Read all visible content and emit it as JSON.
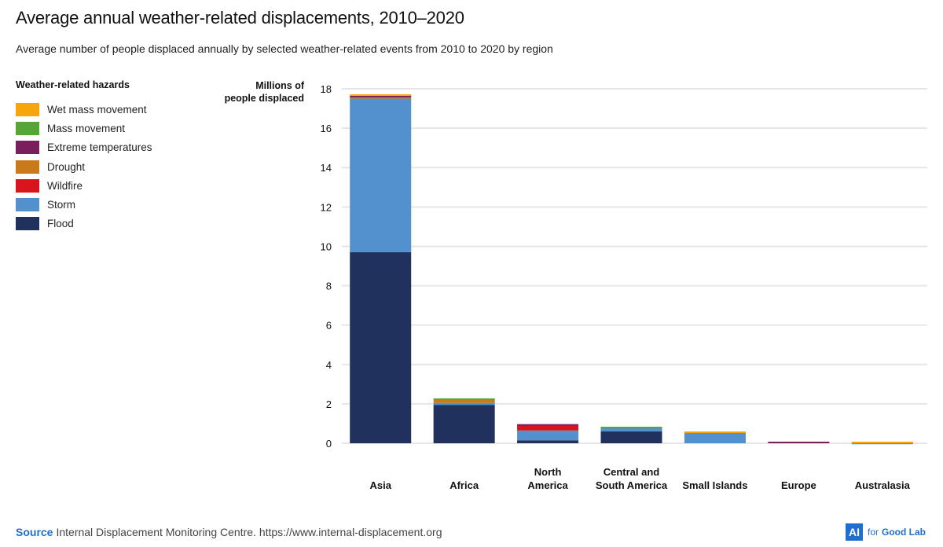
{
  "header": {
    "title": "Average annual weather-related displacements, 2010–2020",
    "subtitle": "Average number of people displaced annually by selected weather-related events from 2010 to 2020 by region"
  },
  "legend": {
    "title": "Weather-related hazards",
    "items": [
      {
        "label": "Wet mass movement",
        "color": "#F7A50D"
      },
      {
        "label": "Mass movement",
        "color": "#55A634"
      },
      {
        "label": "Extreme temperatures",
        "color": "#7A1F5E"
      },
      {
        "label": "Drought",
        "color": "#C97A1A"
      },
      {
        "label": "Wildfire",
        "color": "#D8141D"
      },
      {
        "label": "Storm",
        "color": "#5290CE"
      },
      {
        "label": "Flood",
        "color": "#1F315C"
      }
    ]
  },
  "footer": {
    "source_label": "Source",
    "source_text": "Internal Displacement Monitoring Centre. https://www.internal-displacement.org",
    "brand_box": "AI",
    "brand_for": "for",
    "brand_name": "Good Lab"
  },
  "chart_data": {
    "type": "bar",
    "stacked": true,
    "title": "Average annual weather-related displacements, 2010–2020",
    "subtitle": "Average number of people displaced annually by selected weather-related events from 2010 to 2020 by region",
    "xlabel": "",
    "ylabel_lines": [
      "Millions of",
      "people displaced"
    ],
    "ylim": [
      0,
      18
    ],
    "yticks": [
      0,
      2,
      4,
      6,
      8,
      10,
      12,
      14,
      16,
      18
    ],
    "grid": true,
    "legend_position": "left",
    "categories": [
      [
        "Asia"
      ],
      [
        "Africa"
      ],
      [
        "North",
        "America"
      ],
      [
        "Central and",
        "South America"
      ],
      [
        "Small Islands"
      ],
      [
        "Europe"
      ],
      [
        "Australasia"
      ]
    ],
    "series": [
      {
        "name": "Flood",
        "color": "#1F315C",
        "values": [
          9.7,
          1.95,
          0.15,
          0.6,
          0.0,
          0.0,
          0.0
        ]
      },
      {
        "name": "Storm",
        "color": "#5290CE",
        "values": [
          7.8,
          0.1,
          0.5,
          0.2,
          0.55,
          0.0,
          0.03
        ]
      },
      {
        "name": "Wildfire",
        "color": "#D8141D",
        "values": [
          0.0,
          0.0,
          0.3,
          0.0,
          0.0,
          0.0,
          0.0
        ]
      },
      {
        "name": "Drought",
        "color": "#C97A1A",
        "values": [
          0.1,
          0.2,
          0.0,
          0.0,
          0.0,
          0.0,
          0.0
        ]
      },
      {
        "name": "Extreme temperatures",
        "color": "#7A1F5E",
        "values": [
          0.05,
          0.0,
          0.02,
          0.0,
          0.0,
          0.08,
          0.0
        ]
      },
      {
        "name": "Mass movement",
        "color": "#55A634",
        "values": [
          0.0,
          0.03,
          0.0,
          0.04,
          0.0,
          0.0,
          0.0
        ]
      },
      {
        "name": "Wet mass movement",
        "color": "#F7A50D",
        "values": [
          0.07,
          0.0,
          0.0,
          0.0,
          0.05,
          0.0,
          0.05
        ]
      }
    ]
  }
}
